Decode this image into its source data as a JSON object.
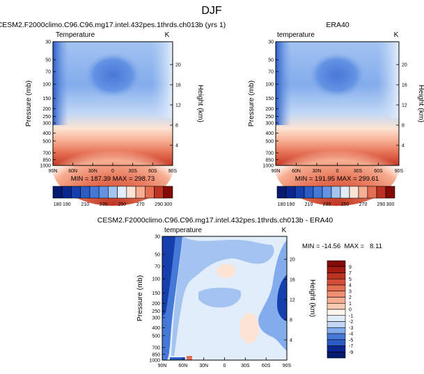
{
  "suptitle": "DJF",
  "colors": {
    "map_pos": [
      "#fff5ee",
      "#fde3d4",
      "#fbcab3",
      "#f7ae92",
      "#f08f72",
      "#e56f53",
      "#d54f38",
      "#bd3322",
      "#a11b12",
      "#820a07"
    ],
    "map_neg": [
      "#e2edfb",
      "#c2d8f6",
      "#a3c3f1",
      "#83acec",
      "#6493e4",
      "#4678d8",
      "#2b5cc6",
      "#163fae",
      "#0a2690",
      "#061a6e"
    ]
  },
  "chart_data": [
    {
      "type": "heatmap",
      "title": "CESM2.F2000climo.C96.C96.mg17.intel.432pes.1thrds.ch013b (yrs 1)",
      "left_label": "Temperature",
      "units": "K",
      "ylabel": "Pressure (mb)",
      "ylabel_right": "Height (km)",
      "x_ticks": [
        "90N",
        "60N",
        "30N",
        "0",
        "30S",
        "60S",
        "90S"
      ],
      "y_ticks": [
        30,
        50,
        70,
        100,
        150,
        200,
        250,
        300,
        400,
        500,
        700,
        850,
        1000
      ],
      "height_ticks": [
        4,
        8,
        12,
        16,
        20
      ],
      "stats": "MIN = 187.39  MAX = 298.73",
      "levels": [
        180,
        190,
        200,
        210,
        220,
        230,
        240,
        250,
        260,
        270,
        280,
        290,
        300,
        310
      ],
      "colorbar_labels": [
        180,
        190,
        210,
        230,
        250,
        270,
        290,
        300
      ]
    },
    {
      "type": "heatmap",
      "title": "ERA40",
      "left_label": "temperature",
      "units": "K",
      "ylabel": "Pressure (mb)",
      "ylabel_right": "Height (km)",
      "x_ticks": [
        "90N",
        "60N",
        "30N",
        "0",
        "30S",
        "60S",
        "90S"
      ],
      "y_ticks": [
        30,
        50,
        70,
        100,
        150,
        200,
        250,
        300,
        400,
        500,
        700,
        850,
        1000
      ],
      "height_ticks": [
        4,
        8,
        12,
        16,
        20
      ],
      "stats": "MIN = 191.95  MAX = 299.61",
      "levels": [
        180,
        190,
        200,
        210,
        220,
        230,
        240,
        250,
        260,
        270,
        280,
        290,
        300,
        310
      ],
      "colorbar_labels": [
        180,
        190,
        210,
        230,
        250,
        270,
        290,
        300
      ]
    },
    {
      "type": "heatmap",
      "title": "CESM2.F2000climo.C96.C96.mg17.intel.432pes.1thrds.ch013b - ERA40",
      "left_label": "temperature",
      "units": "K",
      "ylabel": "Pressure (mb)",
      "ylabel_right": "Height (km)",
      "x_ticks": [
        "90N",
        "60N",
        "30N",
        "0",
        "30S",
        "60S",
        "90S"
      ],
      "y_ticks": [
        30,
        50,
        70,
        100,
        150,
        200,
        250,
        300,
        400,
        500,
        700,
        850,
        1000
      ],
      "height_ticks": [
        4,
        8,
        12,
        16,
        20
      ],
      "stats": "MIN = -14.56  MAX =   8.11",
      "colorbar_labels": [
        9,
        7,
        5,
        4,
        3,
        2,
        1,
        0,
        -1,
        -2,
        -3,
        -4,
        -5,
        -7,
        -9
      ]
    }
  ]
}
